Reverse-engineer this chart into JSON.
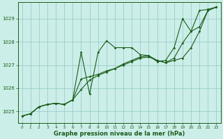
{
  "title": "Graphe pression niveau de la mer (hPa)",
  "bg_color": "#cceee8",
  "grid_color": "#99cccc",
  "line_color": "#1a5c1a",
  "xlim": [
    -0.5,
    23.5
  ],
  "ylim": [
    1024.5,
    1029.7
  ],
  "yticks": [
    1025,
    1026,
    1027,
    1028,
    1029
  ],
  "xticks": [
    0,
    1,
    2,
    3,
    4,
    5,
    6,
    7,
    8,
    9,
    10,
    11,
    12,
    13,
    14,
    15,
    16,
    17,
    18,
    19,
    20,
    21,
    22,
    23
  ],
  "series": {
    "line1": [
      1024.8,
      1024.9,
      1025.2,
      1025.3,
      1025.35,
      1025.3,
      1025.5,
      1027.55,
      1025.75,
      1027.55,
      1028.05,
      1027.75,
      1027.75,
      1027.75,
      1027.45,
      1027.4,
      1027.15,
      1027.2,
      1027.75,
      1029.0,
      1028.45,
      1029.35,
      1029.4,
      1029.5
    ],
    "line2": [
      1024.8,
      1024.9,
      1025.2,
      1025.3,
      1025.35,
      1025.3,
      1025.5,
      1025.95,
      1026.35,
      1026.55,
      1026.7,
      1026.85,
      1027.0,
      1027.15,
      1027.3,
      1027.35,
      1027.2,
      1027.1,
      1027.2,
      1027.3,
      1027.75,
      1028.45,
      1029.35,
      1029.5
    ],
    "line3": [
      1024.8,
      1024.9,
      1025.2,
      1025.3,
      1025.35,
      1025.3,
      1025.5,
      1026.4,
      1026.5,
      1026.6,
      1026.75,
      1026.85,
      1027.05,
      1027.2,
      1027.35,
      1027.4,
      1027.2,
      1027.1,
      1027.3,
      1027.95,
      1028.45,
      1028.65,
      1029.35,
      1029.5
    ]
  }
}
